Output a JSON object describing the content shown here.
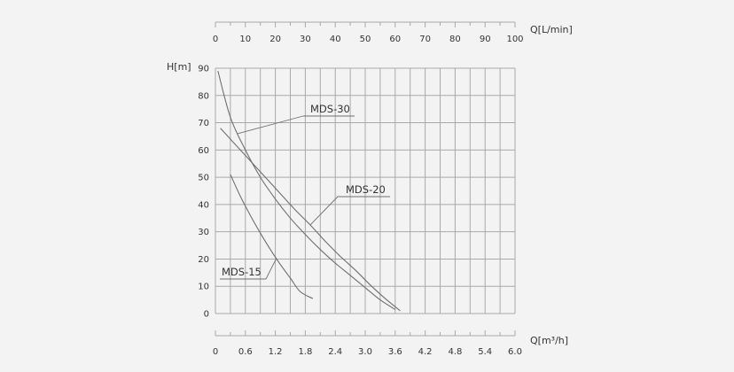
{
  "chart_data": {
    "type": "line",
    "title": "",
    "ylabel": "H[m]",
    "xlabel": "Q[m³/h]",
    "x2label": "Q[L/min]",
    "ylim": [
      0,
      90
    ],
    "xlim": [
      0,
      6.0
    ],
    "x2lim": [
      0,
      100
    ],
    "yticks": [
      "0",
      "10",
      "20",
      "30",
      "40",
      "50",
      "60",
      "70",
      "80",
      "90"
    ],
    "xticks": [
      "0",
      "0.6",
      "1.2",
      "1.8",
      "2.4",
      "3.0",
      "3.6",
      "4.2",
      "4.8",
      "5.4",
      "6.0"
    ],
    "x2ticks": [
      "0",
      "10",
      "20",
      "30",
      "40",
      "50",
      "60",
      "70",
      "80",
      "90",
      "100"
    ],
    "grid": true,
    "colors": {
      "background": "#f3f3f3",
      "grid": "#a9a9a9",
      "curve": "#6f6f6f",
      "text": "#333333"
    },
    "series": [
      {
        "name": "MDS-30",
        "x": [
          0.05,
          0.3,
          0.6,
          0.9,
          1.2,
          1.5,
          1.8,
          2.1,
          2.4,
          2.7,
          3.0,
          3.3,
          3.6
        ],
        "y": [
          89,
          72,
          60,
          50,
          42,
          35,
          29,
          23.5,
          18.5,
          14,
          9.5,
          5,
          1.5
        ]
      },
      {
        "name": "MDS-20",
        "x": [
          0.1,
          0.4,
          0.7,
          1.0,
          1.3,
          1.6,
          1.9,
          2.2,
          2.5,
          2.8,
          3.1,
          3.4,
          3.7
        ],
        "y": [
          68,
          62,
          56,
          50,
          44,
          38,
          32.5,
          26.5,
          21,
          16,
          10.5,
          5.5,
          1
        ]
      },
      {
        "name": "MDS-15",
        "x": [
          0.3,
          0.5,
          0.7,
          0.9,
          1.1,
          1.3,
          1.5,
          1.7,
          1.95
        ],
        "y": [
          51,
          43,
          36,
          29.5,
          23.5,
          18,
          13,
          8,
          5.5
        ]
      }
    ]
  }
}
